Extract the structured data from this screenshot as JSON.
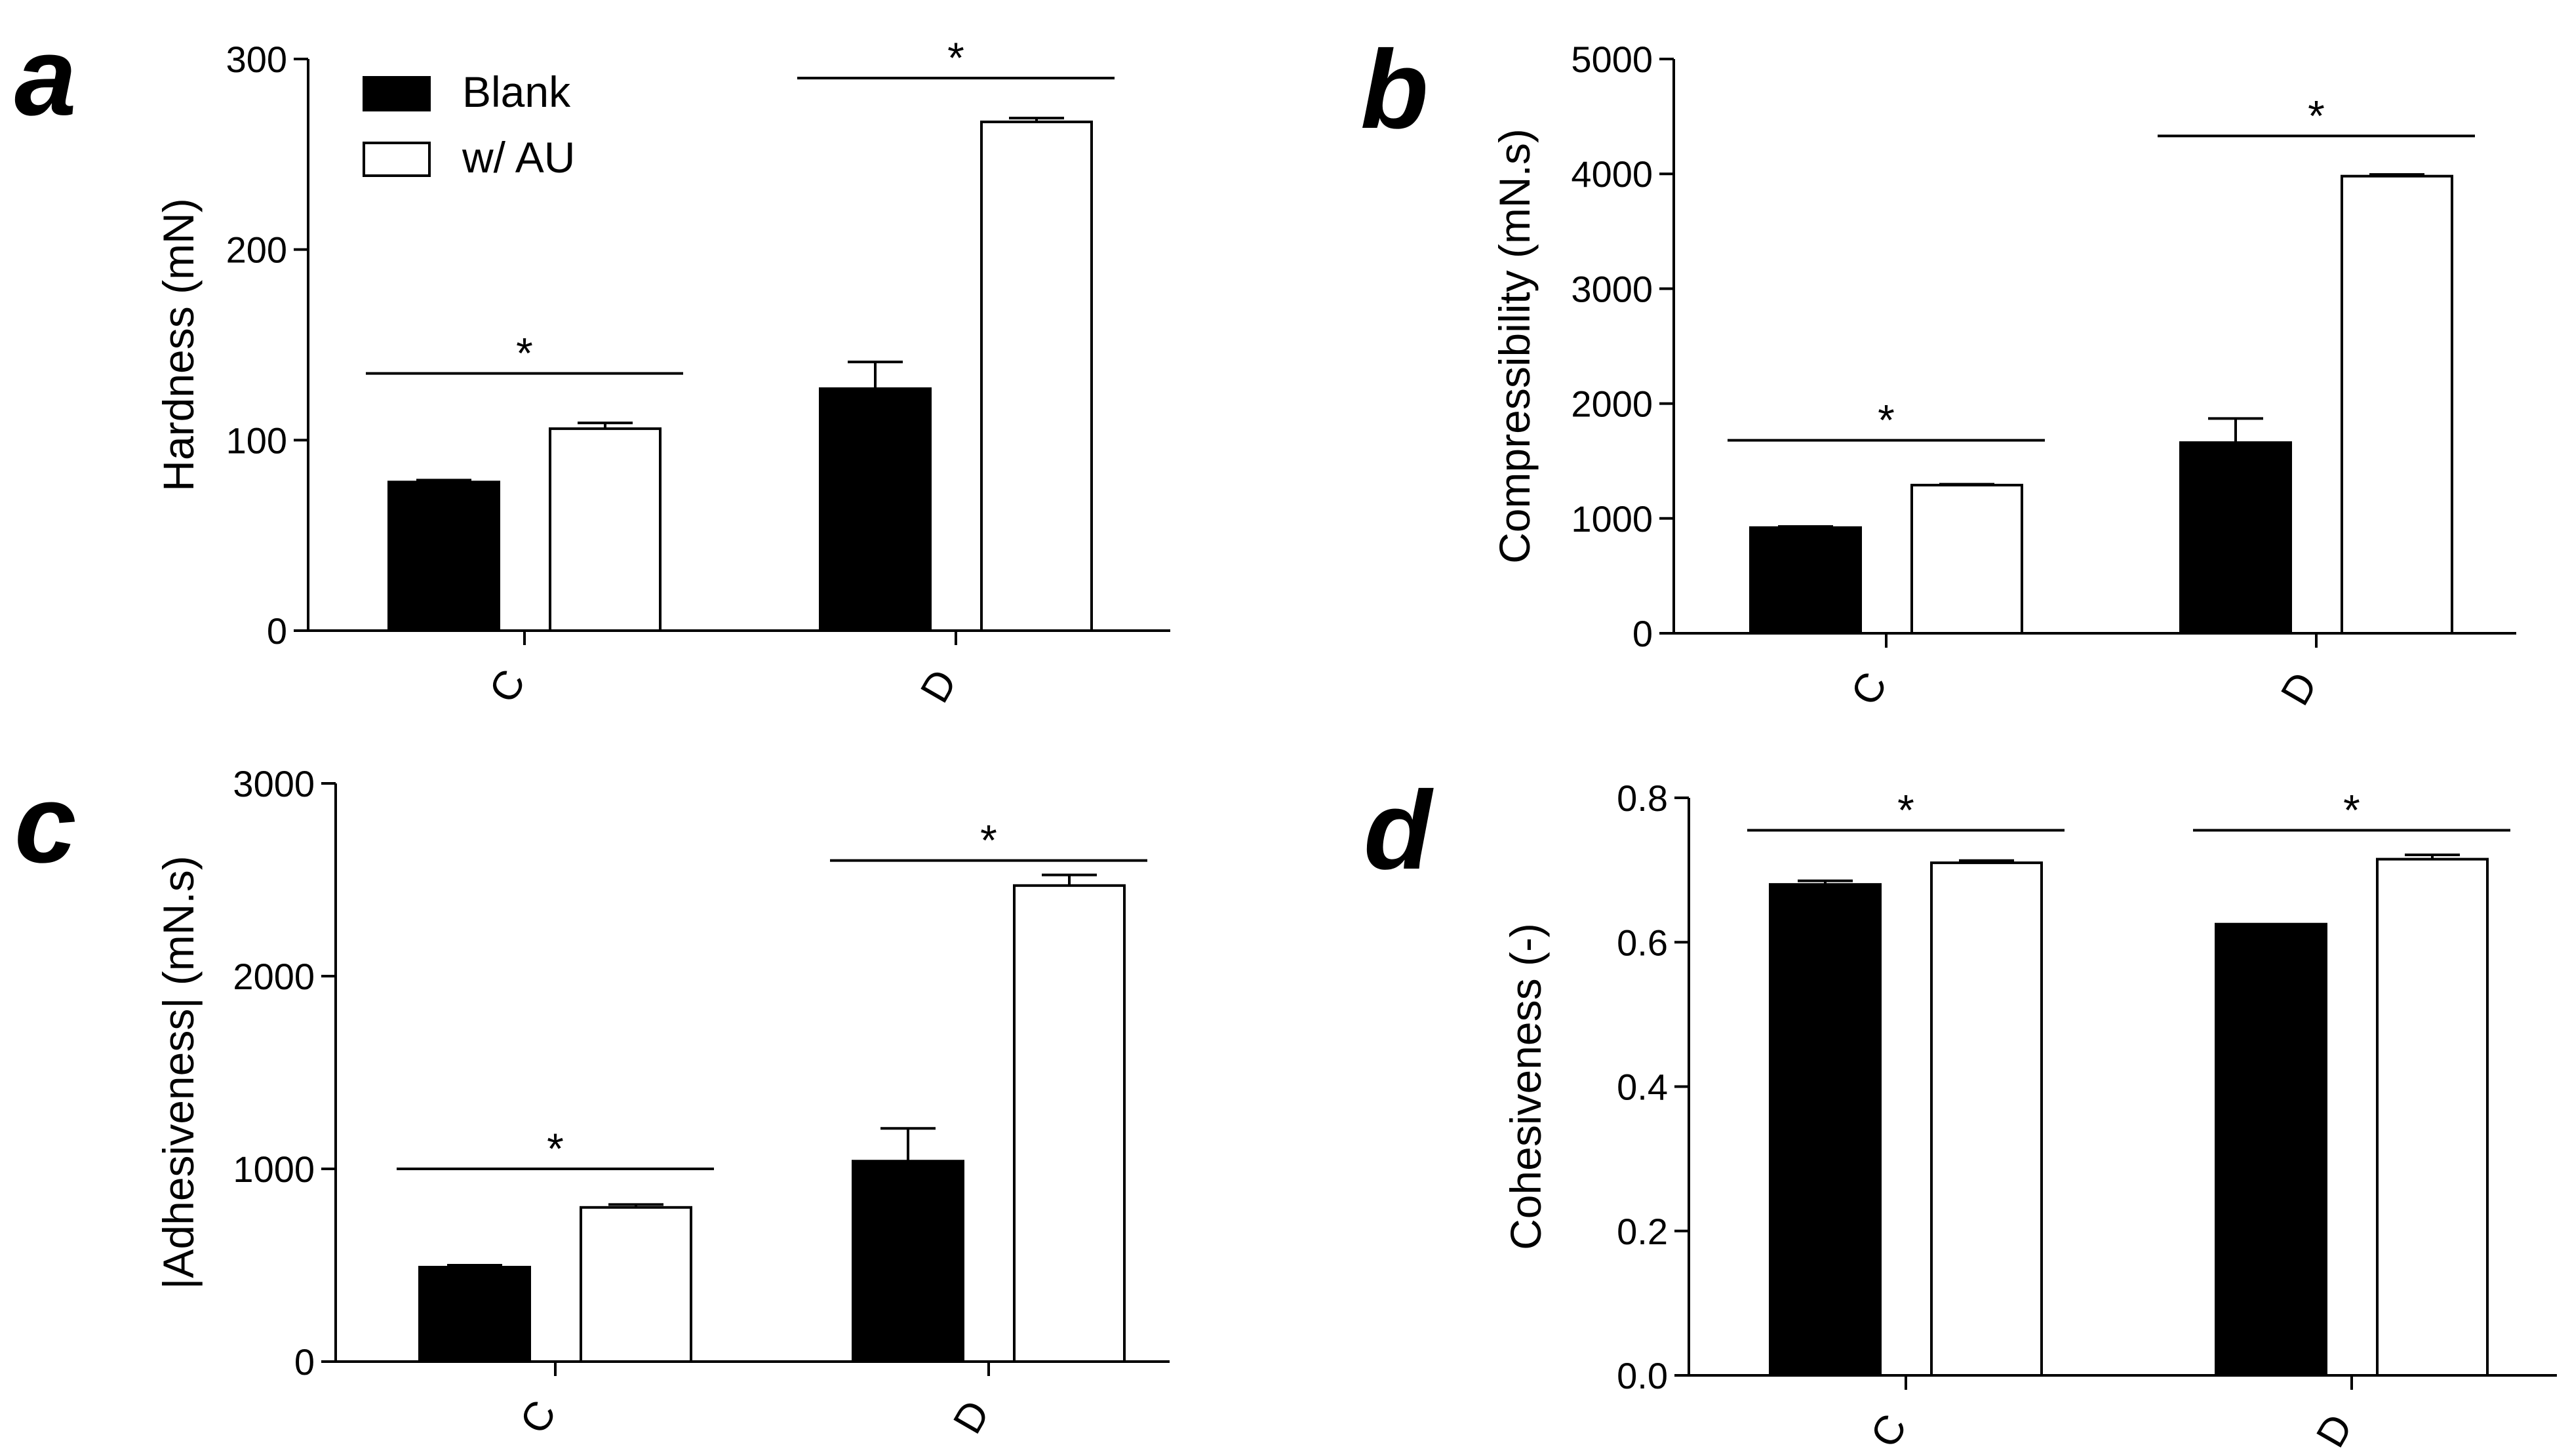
{
  "legend": {
    "items": [
      {
        "label": "Blank",
        "color": "#000000"
      },
      {
        "label": "w/ AU",
        "color": "#ffffff"
      }
    ]
  },
  "chart_data": [
    {
      "panel": "a",
      "type": "bar",
      "ylabel": "Hardness (mN)",
      "ylim": [
        0,
        300
      ],
      "yticks": [
        0,
        100,
        200,
        300
      ],
      "ytick_labels": [
        "0",
        "100",
        "200",
        "300"
      ],
      "categories": [
        "C",
        "D"
      ],
      "series": [
        {
          "name": "Blank",
          "values": [
            78,
            127
          ],
          "errors": [
            1,
            14
          ]
        },
        {
          "name": "w/ AU",
          "values": [
            106,
            267
          ],
          "errors": [
            3,
            2
          ]
        }
      ],
      "significance": [
        {
          "category": "C",
          "label": "*",
          "level": 135
        },
        {
          "category": "D",
          "label": "*",
          "level": 290
        }
      ]
    },
    {
      "panel": "b",
      "type": "bar",
      "ylabel": "Compressibility (mN.s)",
      "ylim": [
        0,
        5000
      ],
      "yticks": [
        0,
        1000,
        2000,
        3000,
        4000,
        5000
      ],
      "ytick_labels": [
        "0",
        "1000",
        "2000",
        "3000",
        "4000",
        "5000"
      ],
      "categories": [
        "C",
        "D"
      ],
      "series": [
        {
          "name": "Blank",
          "values": [
            920,
            1660
          ],
          "errors": [
            10,
            210
          ]
        },
        {
          "name": "w/ AU",
          "values": [
            1290,
            3980
          ],
          "errors": [
            8,
            15
          ]
        }
      ],
      "significance": [
        {
          "category": "C",
          "label": "*",
          "level": 1680
        },
        {
          "category": "D",
          "label": "*",
          "level": 4330
        }
      ]
    },
    {
      "panel": "c",
      "type": "bar",
      "ylabel": "|Adhesiveness| (mN.s)",
      "ylim": [
        0,
        3000
      ],
      "yticks": [
        0,
        1000,
        2000,
        3000
      ],
      "ytick_labels": [
        "0",
        "1000",
        "2000",
        "3000"
      ],
      "categories": [
        "C",
        "D"
      ],
      "series": [
        {
          "name": "Blank",
          "values": [
            490,
            1040
          ],
          "errors": [
            10,
            170
          ]
        },
        {
          "name": "w/ AU",
          "values": [
            800,
            2470
          ],
          "errors": [
            15,
            55
          ]
        }
      ],
      "significance": [
        {
          "category": "C",
          "label": "*",
          "level": 1000
        },
        {
          "category": "D",
          "label": "*",
          "level": 2600
        }
      ]
    },
    {
      "panel": "d",
      "type": "bar",
      "ylabel": "Cohesiveness (-)",
      "ylim": [
        0,
        0.8
      ],
      "yticks": [
        0,
        0.2,
        0.4,
        0.6,
        0.8
      ],
      "ytick_labels": [
        "0.0",
        "0.2",
        "0.4",
        "0.6",
        "0.8"
      ],
      "categories": [
        "C",
        "D"
      ],
      "series": [
        {
          "name": "Blank",
          "values": [
            0.68,
            0.625
          ],
          "errors": [
            0.005,
            0.0
          ]
        },
        {
          "name": "w/ AU",
          "values": [
            0.71,
            0.715
          ],
          "errors": [
            0.003,
            0.006
          ]
        }
      ],
      "significance": [
        {
          "category": "C",
          "label": "*",
          "level": 0.755
        },
        {
          "category": "D",
          "label": "*",
          "level": 0.755
        }
      ]
    }
  ]
}
